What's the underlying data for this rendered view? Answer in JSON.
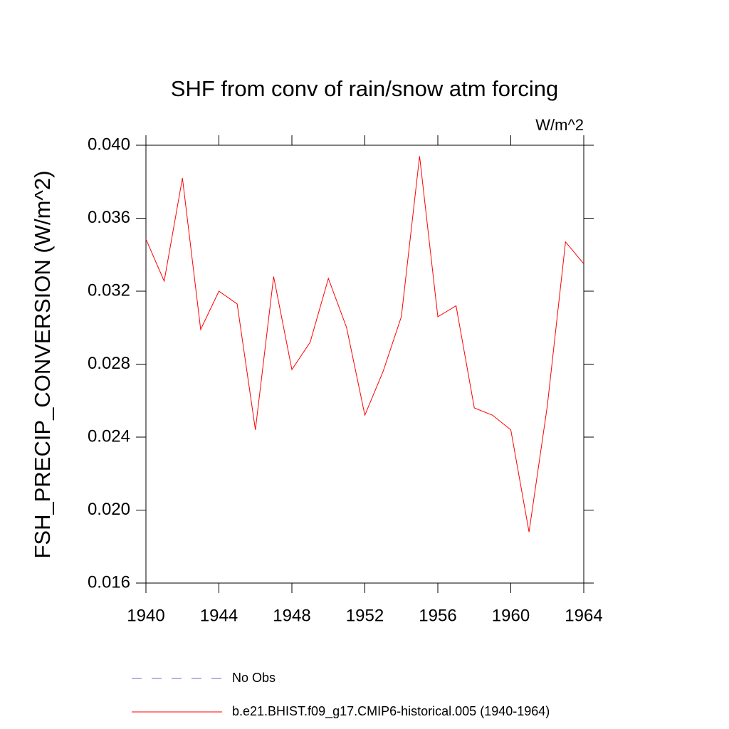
{
  "chart_data": {
    "type": "line",
    "title": "SHF from conv of rain/snow atm forcing",
    "units": "W/m^2",
    "y_label": "FSH_PRECIP_CONVERSION  (W/m^2)",
    "x": [
      1940,
      1941,
      1942,
      1943,
      1944,
      1945,
      1946,
      1947,
      1948,
      1949,
      1950,
      1951,
      1952,
      1953,
      1954,
      1955,
      1956,
      1957,
      1958,
      1959,
      1960,
      1961,
      1962,
      1963,
      1964
    ],
    "series": [
      {
        "name": "No Obs",
        "color": "#6a6acd",
        "dashed": true,
        "values": [
          null,
          null,
          null,
          null,
          null,
          null,
          null,
          null,
          null,
          null,
          null,
          null,
          null,
          null,
          null,
          null,
          null,
          null,
          null,
          null,
          null,
          null,
          null,
          null,
          null
        ]
      },
      {
        "name": "b.e21.BHIST.f09_g17.CMIP6-historical.005 (1940-1964)",
        "color": "#ff0000",
        "dashed": false,
        "values": [
          0.03485,
          0.03255,
          0.0382,
          0.0299,
          0.032,
          0.0313,
          0.0244,
          0.0328,
          0.0277,
          0.0292,
          0.0327,
          0.03,
          0.0252,
          0.0276,
          0.0306,
          0.0394,
          0.0306,
          0.0312,
          0.0256,
          0.0252,
          0.0244,
          0.0188,
          0.0257,
          0.0347,
          0.0335
        ]
      }
    ],
    "xlim": [
      1940,
      1964
    ],
    "xticks": [
      1940,
      1944,
      1948,
      1952,
      1956,
      1960,
      1964
    ],
    "ylim": [
      0.016,
      0.04
    ],
    "yticks": [
      {
        "value": 0.016,
        "label": "0.016"
      },
      {
        "value": 0.02,
        "label": "0.020"
      },
      {
        "value": 0.024,
        "label": "0.024"
      },
      {
        "value": 0.028,
        "label": "0.028"
      },
      {
        "value": 0.032,
        "label": "0.032"
      },
      {
        "value": 0.036,
        "label": "0.036"
      },
      {
        "value": 0.04,
        "label": "0.040"
      }
    ]
  }
}
